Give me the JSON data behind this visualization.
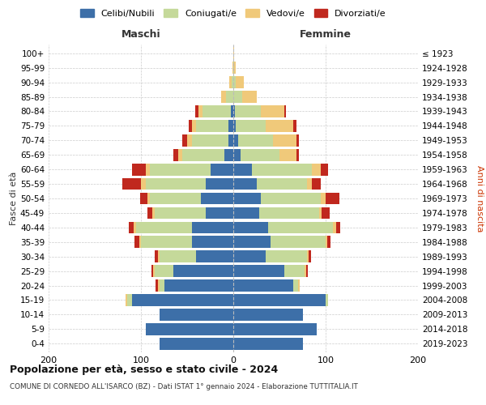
{
  "age_groups": [
    "0-4",
    "5-9",
    "10-14",
    "15-19",
    "20-24",
    "25-29",
    "30-34",
    "35-39",
    "40-44",
    "45-49",
    "50-54",
    "55-59",
    "60-64",
    "65-69",
    "70-74",
    "75-79",
    "80-84",
    "85-89",
    "90-94",
    "95-99",
    "100+"
  ],
  "birth_years": [
    "2019-2023",
    "2014-2018",
    "2009-2013",
    "2004-2008",
    "1999-2003",
    "1994-1998",
    "1989-1993",
    "1984-1988",
    "1979-1983",
    "1974-1978",
    "1969-1973",
    "1964-1968",
    "1959-1963",
    "1954-1958",
    "1949-1953",
    "1944-1948",
    "1939-1943",
    "1934-1938",
    "1929-1933",
    "1924-1928",
    "≤ 1923"
  ],
  "colors": {
    "celibe": "#3d6fa8",
    "coniugato": "#c5d99a",
    "vedovo": "#f0c97a",
    "divorziato": "#c0281e"
  },
  "maschi": {
    "celibe": [
      80,
      95,
      80,
      110,
      75,
      65,
      40,
      45,
      45,
      30,
      35,
      30,
      25,
      10,
      5,
      5,
      3,
      0,
      0,
      0,
      0
    ],
    "coniugato": [
      0,
      0,
      0,
      5,
      5,
      20,
      40,
      55,
      60,
      55,
      55,
      65,
      65,
      45,
      40,
      35,
      30,
      8,
      2,
      0,
      0
    ],
    "vedovo": [
      0,
      0,
      0,
      2,
      2,
      2,
      2,
      2,
      3,
      3,
      3,
      5,
      5,
      5,
      5,
      5,
      5,
      5,
      2,
      1,
      0
    ],
    "divorziato": [
      0,
      0,
      0,
      0,
      2,
      2,
      3,
      5,
      5,
      5,
      8,
      20,
      15,
      5,
      5,
      3,
      3,
      0,
      0,
      0,
      0
    ]
  },
  "femmine": {
    "celibe": [
      75,
      90,
      75,
      100,
      65,
      55,
      35,
      40,
      38,
      28,
      30,
      25,
      20,
      8,
      5,
      3,
      2,
      0,
      0,
      0,
      0
    ],
    "coniugato": [
      0,
      0,
      0,
      3,
      5,
      22,
      45,
      60,
      70,
      65,
      65,
      55,
      65,
      42,
      38,
      32,
      28,
      10,
      3,
      1,
      0
    ],
    "vedovo": [
      0,
      0,
      0,
      0,
      2,
      2,
      2,
      2,
      3,
      3,
      5,
      5,
      10,
      18,
      25,
      30,
      25,
      15,
      8,
      2,
      1
    ],
    "divorziato": [
      0,
      0,
      0,
      0,
      0,
      2,
      2,
      3,
      5,
      8,
      15,
      10,
      8,
      3,
      3,
      3,
      2,
      0,
      0,
      0,
      0
    ]
  },
  "xlim": 200,
  "title": "Popolazione per età, sesso e stato civile - 2024",
  "subtitle": "COMUNE DI CORNEDO ALL'ISARCO (BZ) - Dati ISTAT 1° gennaio 2024 - Elaborazione TUTTITALIA.IT",
  "xlabel_maschi": "Maschi",
  "xlabel_femmine": "Femmine",
  "ylabel": "Fasce di età",
  "ylabel2": "Anni di nascita",
  "legend_labels": [
    "Celibi/Nubili",
    "Coniugati/e",
    "Vedovi/e",
    "Divorziati/e"
  ],
  "bg_color": "#ffffff",
  "grid_color": "#cccccc"
}
